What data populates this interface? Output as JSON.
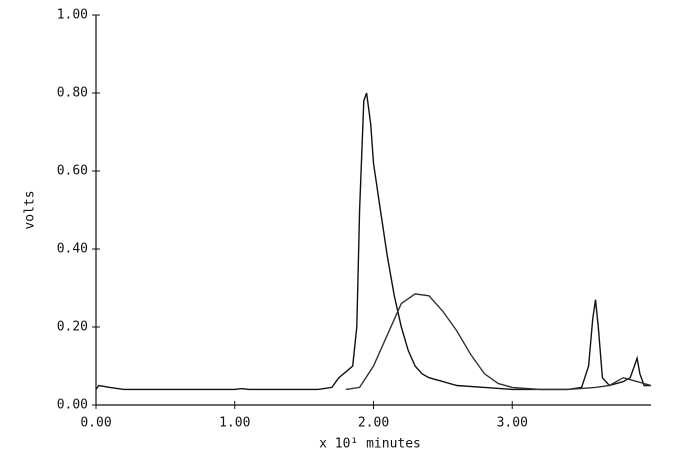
{
  "chart_data": {
    "type": "line",
    "x_label": "x 10¹ minutes",
    "y_label": "volts",
    "xlim": [
      0,
      4.0
    ],
    "ylim": [
      0,
      1.0
    ],
    "xticks": [
      {
        "value": 0,
        "label": "0.00"
      },
      {
        "value": 1,
        "label": "1.00"
      },
      {
        "value": 2,
        "label": "2.00"
      },
      {
        "value": 3,
        "label": "3.00"
      }
    ],
    "yticks": [
      {
        "value": 0,
        "label": "0.00"
      },
      {
        "value": 0.2,
        "label": "0.20"
      },
      {
        "value": 0.4,
        "label": "0.40"
      },
      {
        "value": 0.6,
        "label": "0.60"
      },
      {
        "value": 0.8,
        "label": "0.80"
      },
      {
        "value": 1.0,
        "label": "1.00"
      }
    ],
    "series": [
      {
        "color": "#111111",
        "x": [
          0,
          0.02,
          0.1,
          0.2,
          1.0,
          1.05,
          1.1,
          1.6,
          1.7,
          1.75,
          1.8,
          1.85,
          1.88,
          1.9,
          1.93,
          1.95,
          1.98,
          2.0,
          2.05,
          2.1,
          2.15,
          2.2,
          2.25,
          2.3,
          2.35,
          2.4,
          2.5,
          2.6,
          2.8,
          3.0,
          3.4,
          3.5,
          3.55,
          3.58,
          3.6,
          3.62,
          3.65,
          3.7,
          3.8,
          3.85,
          3.88,
          3.9,
          3.92,
          3.95,
          4.0
        ],
        "values": [
          0.04,
          0.05,
          0.045,
          0.04,
          0.04,
          0.042,
          0.04,
          0.04,
          0.045,
          0.07,
          0.085,
          0.1,
          0.2,
          0.5,
          0.78,
          0.8,
          0.72,
          0.62,
          0.5,
          0.38,
          0.28,
          0.2,
          0.14,
          0.1,
          0.08,
          0.07,
          0.06,
          0.05,
          0.045,
          0.04,
          0.04,
          0.045,
          0.1,
          0.22,
          0.27,
          0.2,
          0.07,
          0.05,
          0.06,
          0.07,
          0.1,
          0.12,
          0.08,
          0.05,
          0.05
        ]
      },
      {
        "color": "#333333",
        "x": [
          1.8,
          1.9,
          2.0,
          2.1,
          2.2,
          2.3,
          2.4,
          2.5,
          2.6,
          2.7,
          2.8,
          2.9,
          3.0,
          3.2,
          3.4,
          3.6,
          3.7,
          3.8,
          3.9,
          4.0
        ],
        "values": [
          0.04,
          0.045,
          0.1,
          0.18,
          0.26,
          0.285,
          0.28,
          0.24,
          0.19,
          0.13,
          0.08,
          0.055,
          0.045,
          0.04,
          0.04,
          0.045,
          0.05,
          0.07,
          0.06,
          0.05
        ]
      }
    ]
  }
}
